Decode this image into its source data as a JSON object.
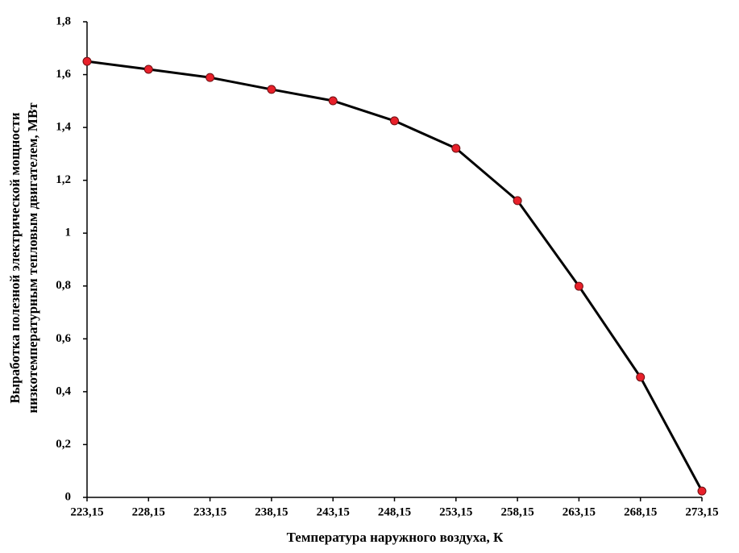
{
  "chart_data": {
    "type": "line",
    "x_label": "Температура наружного воздуха, К",
    "y_label": [
      "Выработка  полезной электрической мощности",
      "низкотемпературным тепловым двигателем, МВт"
    ],
    "x": [
      223.15,
      228.15,
      233.15,
      238.15,
      243.15,
      248.15,
      253.15,
      258.15,
      263.15,
      268.15,
      273.15
    ],
    "series": [
      {
        "color": "#000000",
        "marker_color": "#e8202a",
        "values": [
          1.65,
          1.62,
          1.589,
          1.544,
          1.501,
          1.425,
          1.321,
          1.123,
          0.799,
          0.455,
          0.024
        ]
      }
    ],
    "xlim": [
      223.15,
      273.15
    ],
    "xticks": [
      {
        "value": 223.15,
        "label": "223,15"
      },
      {
        "value": 228.15,
        "label": "228,15"
      },
      {
        "value": 233.15,
        "label": "233,15"
      },
      {
        "value": 238.15,
        "label": "238,15"
      },
      {
        "value": 243.15,
        "label": "243,15"
      },
      {
        "value": 248.15,
        "label": "248,15"
      },
      {
        "value": 253.15,
        "label": "253,15"
      },
      {
        "value": 258.15,
        "label": "258,15"
      },
      {
        "value": 263.15,
        "label": "263,15"
      },
      {
        "value": 268.15,
        "label": "268,15"
      },
      {
        "value": 273.15,
        "label": "273,15"
      }
    ],
    "ylim": [
      0,
      1.8
    ],
    "yticks": [
      0,
      {
        "value": 0.2,
        "label": "0,2"
      },
      {
        "value": 0.4,
        "label": "0,4"
      },
      {
        "value": 0.6,
        "label": "0,6"
      },
      {
        "value": 0.8,
        "label": "0,8"
      },
      1,
      {
        "value": 1.2,
        "label": "1,2"
      },
      {
        "value": 1.4,
        "label": "1,4"
      },
      {
        "value": 1.6,
        "label": "1,6"
      },
      {
        "value": 1.8,
        "label": "1,8"
      }
    ],
    "grid": false
  }
}
